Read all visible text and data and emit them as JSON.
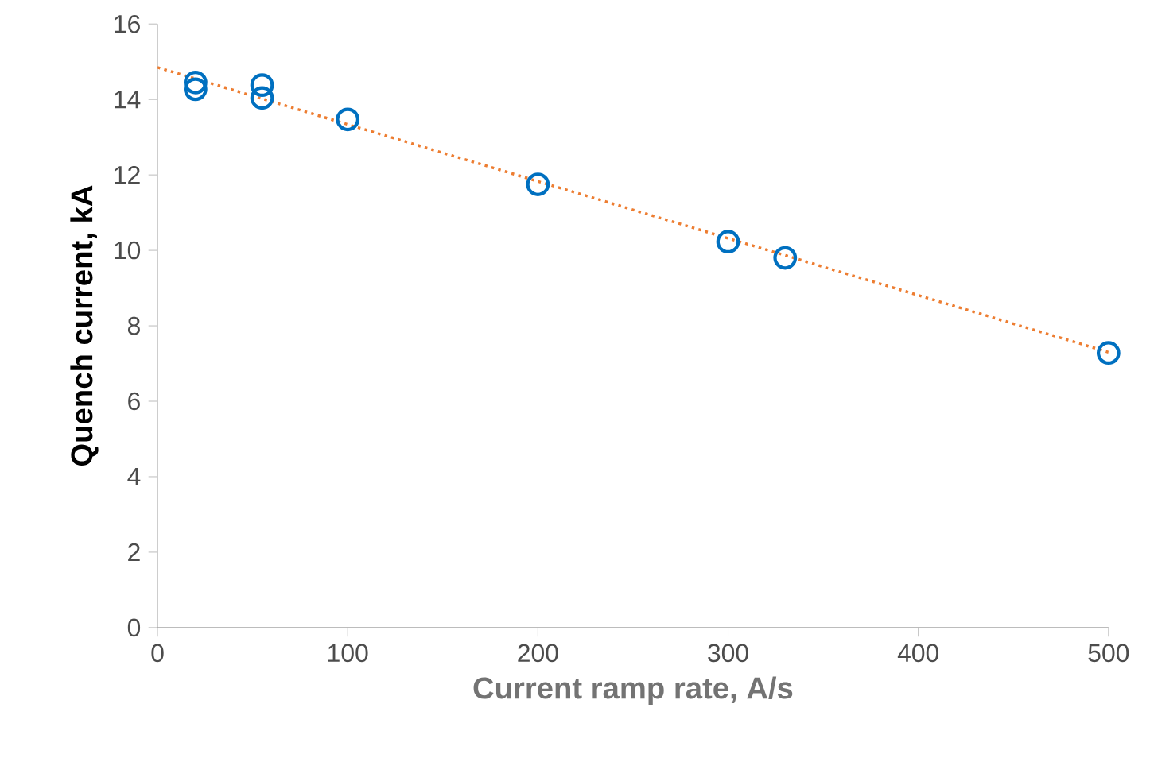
{
  "chart_data": {
    "type": "scatter",
    "xlabel": "Current ramp rate, A/s",
    "ylabel": "Quench current, kA",
    "xlim": [
      0,
      500
    ],
    "ylim": [
      0,
      16
    ],
    "xticks": [
      0,
      100,
      200,
      300,
      400,
      500
    ],
    "yticks": [
      0,
      2,
      4,
      6,
      8,
      10,
      12,
      14,
      16
    ],
    "grid": false,
    "series": [
      {
        "type": "scatter",
        "color": "#0070c0",
        "marker": "circle",
        "x": [
          20,
          20,
          55,
          55,
          100,
          200,
          300,
          330,
          500
        ],
        "values": [
          14.45,
          14.27,
          14.38,
          14.04,
          13.47,
          11.75,
          10.23,
          9.8,
          7.28
        ]
      },
      {
        "type": "line",
        "color": "#ed7d31",
        "line_style": "dotted",
        "x": [
          0,
          500
        ],
        "values": [
          14.85,
          7.3
        ]
      }
    ]
  }
}
